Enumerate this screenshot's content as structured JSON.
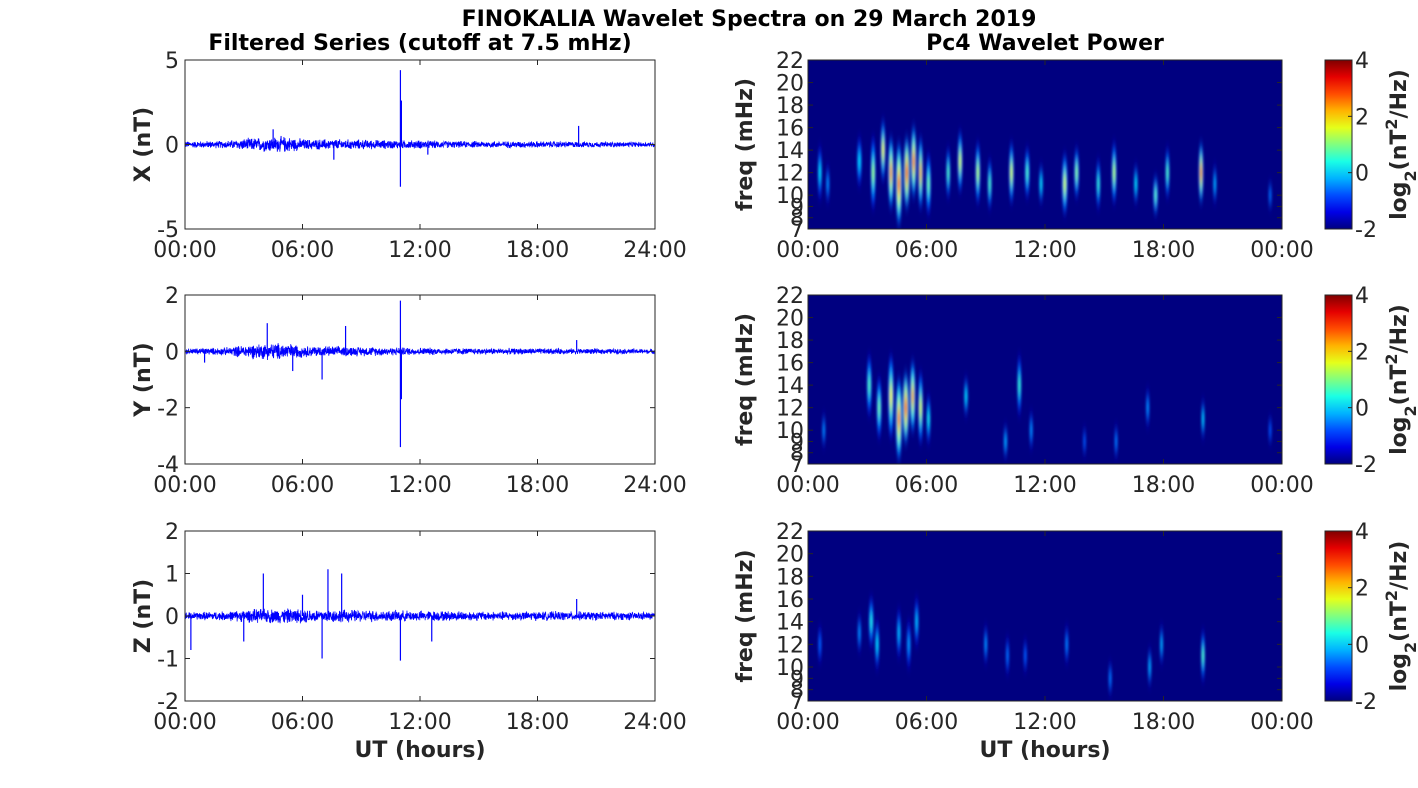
{
  "figure": {
    "title": "FINOKALIA Wavelet Spectra on 29 March 2019",
    "left_column_title": "Filtered Series (cutoff at 7.5 mHz)",
    "right_column_title": "Pc4 Wavelet Power",
    "xlabel": "UT (hours)"
  },
  "chart_data": [
    {
      "type": "line",
      "name": "X filtered series",
      "ylabel": "X (nT)",
      "xlim": [
        0,
        24
      ],
      "ylim": [
        -5,
        5
      ],
      "yticks": [
        -5,
        0,
        5
      ],
      "xticks": [
        "00:00",
        "06:00",
        "12:00",
        "18:00",
        "24:00"
      ],
      "line_color": "#0000ff",
      "noise_profile": [
        [
          0,
          0.22
        ],
        [
          2,
          0.25
        ],
        [
          3.5,
          0.45
        ],
        [
          5,
          0.55
        ],
        [
          6.2,
          0.35
        ],
        [
          8,
          0.35
        ],
        [
          10,
          0.3
        ],
        [
          12,
          0.28
        ],
        [
          14,
          0.22
        ],
        [
          18,
          0.22
        ],
        [
          22,
          0.18
        ],
        [
          24,
          0.16
        ]
      ],
      "spikes": [
        [
          11.0,
          4.4
        ],
        [
          11.0,
          -2.5
        ],
        [
          11.05,
          2.6
        ],
        [
          20.1,
          1.1
        ],
        [
          4.5,
          0.9
        ],
        [
          7.6,
          -0.9
        ],
        [
          12.4,
          -0.6
        ]
      ]
    },
    {
      "type": "line",
      "name": "Y filtered series",
      "ylabel": "Y (nT)",
      "xlim": [
        0,
        24
      ],
      "ylim": [
        -4,
        2
      ],
      "yticks": [
        -4,
        -2,
        0,
        2
      ],
      "xticks": [
        "00:00",
        "06:00",
        "12:00",
        "18:00",
        "24:00"
      ],
      "line_color": "#0000ff",
      "noise_profile": [
        [
          0,
          0.12
        ],
        [
          2,
          0.15
        ],
        [
          3.5,
          0.3
        ],
        [
          5,
          0.35
        ],
        [
          6.2,
          0.22
        ],
        [
          8,
          0.2
        ],
        [
          10,
          0.17
        ],
        [
          12,
          0.15
        ],
        [
          14,
          0.13
        ],
        [
          18,
          0.12
        ],
        [
          24,
          0.1
        ]
      ],
      "spikes": [
        [
          11.0,
          -3.4
        ],
        [
          11.0,
          1.8
        ],
        [
          11.05,
          -1.7
        ],
        [
          4.2,
          1.0
        ],
        [
          5.5,
          -0.7
        ],
        [
          7.0,
          -1.0
        ],
        [
          8.2,
          0.9
        ],
        [
          1.0,
          -0.4
        ],
        [
          20.0,
          0.4
        ]
      ]
    },
    {
      "type": "line",
      "name": "Z filtered series",
      "ylabel": "Z (nT)",
      "xlim": [
        0,
        24
      ],
      "ylim": [
        -2,
        2
      ],
      "yticks": [
        -2,
        -1,
        0,
        1,
        2
      ],
      "xticks": [
        "00:00",
        "06:00",
        "12:00",
        "18:00",
        "24:00"
      ],
      "line_color": "#0000ff",
      "noise_profile": [
        [
          0,
          0.1
        ],
        [
          2,
          0.12
        ],
        [
          3.5,
          0.18
        ],
        [
          5,
          0.2
        ],
        [
          6.5,
          0.18
        ],
        [
          8,
          0.17
        ],
        [
          10,
          0.15
        ],
        [
          12,
          0.14
        ],
        [
          16,
          0.12
        ],
        [
          20,
          0.12
        ],
        [
          24,
          0.1
        ]
      ],
      "spikes": [
        [
          4.0,
          1.0
        ],
        [
          7.3,
          1.1
        ],
        [
          8.0,
          1.0
        ],
        [
          7.0,
          -1.0
        ],
        [
          11.0,
          -1.05
        ],
        [
          0.3,
          -0.8
        ],
        [
          3.0,
          -0.6
        ],
        [
          6.0,
          0.5
        ],
        [
          12.6,
          -0.6
        ],
        [
          20.0,
          0.4
        ]
      ]
    },
    {
      "type": "heatmap",
      "name": "X wavelet power",
      "ylabel": "freq (mHz)",
      "xlim": [
        0,
        24
      ],
      "ylim": [
        7,
        22
      ],
      "xticks": [
        "00:00",
        "06:00",
        "12:00",
        "18:00",
        "00:00"
      ],
      "yticks": [
        7,
        8,
        9,
        10,
        12,
        14,
        16,
        18,
        20,
        22
      ],
      "colorbar": {
        "label": "log2(nT2/Hz)",
        "min": -2,
        "max": 4,
        "ticks": [
          -2,
          0,
          2,
          4
        ]
      },
      "background": -2,
      "streaks": [
        [
          0.6,
          12,
          4.5,
          0.1,
          0.2
        ],
        [
          1.0,
          11,
          3,
          0.08,
          -0.2
        ],
        [
          2.6,
          13,
          4,
          0.12,
          0.2
        ],
        [
          3.3,
          12,
          6,
          0.12,
          1.2
        ],
        [
          3.8,
          14,
          5,
          0.12,
          1.8
        ],
        [
          4.2,
          12,
          6,
          0.14,
          2.6
        ],
        [
          4.6,
          11,
          7,
          0.16,
          3.0
        ],
        [
          5.0,
          12,
          6,
          0.16,
          3.3
        ],
        [
          5.35,
          13,
          6,
          0.14,
          2.8
        ],
        [
          5.7,
          12,
          6,
          0.12,
          2.2
        ],
        [
          6.1,
          11,
          5,
          0.12,
          1.0
        ],
        [
          7.1,
          12,
          4,
          0.1,
          0.8
        ],
        [
          7.7,
          13,
          5,
          0.12,
          1.6
        ],
        [
          8.6,
          12,
          5,
          0.12,
          1.4
        ],
        [
          9.2,
          11,
          4,
          0.1,
          0.8
        ],
        [
          10.3,
          12,
          5,
          0.12,
          1.6
        ],
        [
          11.1,
          12,
          4,
          0.12,
          0.8
        ],
        [
          11.8,
          11,
          3,
          0.1,
          0.4
        ],
        [
          13.0,
          11,
          5,
          0.14,
          1.6
        ],
        [
          13.6,
          12,
          4,
          0.12,
          1.2
        ],
        [
          14.7,
          11,
          4,
          0.1,
          0.6
        ],
        [
          15.5,
          12,
          5,
          0.12,
          1.4
        ],
        [
          16.6,
          11,
          3,
          0.1,
          0.4
        ],
        [
          17.6,
          10,
          3,
          0.12,
          1.0
        ],
        [
          18.2,
          12,
          4,
          0.1,
          0.8
        ],
        [
          19.9,
          12,
          5,
          0.12,
          2.6
        ],
        [
          20.6,
          11,
          3,
          0.08,
          0.0
        ],
        [
          23.4,
          10,
          2,
          0.08,
          -0.3
        ]
      ]
    },
    {
      "type": "heatmap",
      "name": "Y wavelet power",
      "ylabel": "freq (mHz)",
      "xlim": [
        0,
        24
      ],
      "ylim": [
        7,
        22
      ],
      "xticks": [
        "00:00",
        "06:00",
        "12:00",
        "18:00",
        "00:00"
      ],
      "yticks": [
        7,
        8,
        9,
        10,
        12,
        14,
        16,
        18,
        20,
        22
      ],
      "colorbar": {
        "label": "log2(nT2/Hz)",
        "min": -2,
        "max": 4,
        "ticks": [
          -2,
          0,
          2,
          4
        ]
      },
      "background": -2,
      "streaks": [
        [
          0.8,
          10,
          2.5,
          0.08,
          -0.2
        ],
        [
          3.1,
          14,
          5,
          0.12,
          0.8
        ],
        [
          3.6,
          12,
          5,
          0.12,
          1.0
        ],
        [
          4.2,
          13,
          7,
          0.14,
          1.8
        ],
        [
          4.6,
          11,
          7,
          0.16,
          2.8
        ],
        [
          4.95,
          12,
          6,
          0.16,
          3.2
        ],
        [
          5.3,
          13,
          6,
          0.14,
          2.4
        ],
        [
          5.7,
          12,
          6,
          0.12,
          1.6
        ],
        [
          6.1,
          11,
          4,
          0.1,
          0.4
        ],
        [
          8.0,
          13,
          3,
          0.1,
          0.3
        ],
        [
          10.0,
          9,
          2.5,
          0.1,
          0.0
        ],
        [
          10.7,
          14,
          5,
          0.1,
          0.6
        ],
        [
          11.3,
          10,
          3,
          0.08,
          -0.2
        ],
        [
          14.0,
          9,
          2,
          0.08,
          -0.5
        ],
        [
          15.6,
          9,
          2.5,
          0.08,
          -0.3
        ],
        [
          17.2,
          12,
          3,
          0.08,
          -0.2
        ],
        [
          20.0,
          11,
          3,
          0.08,
          0.2
        ],
        [
          23.4,
          10,
          2,
          0.08,
          -0.5
        ]
      ]
    },
    {
      "type": "heatmap",
      "name": "Z wavelet power",
      "ylabel": "freq (mHz)",
      "xlim": [
        0,
        24
      ],
      "ylim": [
        7,
        22
      ],
      "xticks": [
        "00:00",
        "06:00",
        "12:00",
        "18:00",
        "00:00"
      ],
      "yticks": [
        7,
        8,
        9,
        10,
        12,
        14,
        16,
        18,
        20,
        22
      ],
      "colorbar": {
        "label": "log2(nT2/Hz)",
        "min": -2,
        "max": 4,
        "ticks": [
          -2,
          0,
          2,
          4
        ]
      },
      "background": -2,
      "streaks": [
        [
          0.6,
          12,
          3,
          0.08,
          -0.5
        ],
        [
          2.6,
          13,
          3,
          0.08,
          -0.2
        ],
        [
          3.2,
          14,
          4,
          0.12,
          0.5
        ],
        [
          3.5,
          12,
          4,
          0.1,
          0.2
        ],
        [
          4.6,
          13,
          4,
          0.1,
          0.0
        ],
        [
          5.1,
          12,
          4,
          0.1,
          -0.2
        ],
        [
          5.5,
          14,
          4,
          0.1,
          0.0
        ],
        [
          9.0,
          12,
          3,
          0.08,
          -0.2
        ],
        [
          10.1,
          11,
          3,
          0.08,
          -0.4
        ],
        [
          11.0,
          11,
          2.5,
          0.08,
          -0.5
        ],
        [
          13.1,
          12,
          3,
          0.08,
          -0.3
        ],
        [
          15.3,
          9,
          2.5,
          0.08,
          -0.3
        ],
        [
          17.3,
          10,
          3,
          0.08,
          0.0
        ],
        [
          17.9,
          12,
          3,
          0.08,
          0.0
        ],
        [
          20.0,
          11,
          4,
          0.1,
          0.8
        ]
      ]
    }
  ]
}
